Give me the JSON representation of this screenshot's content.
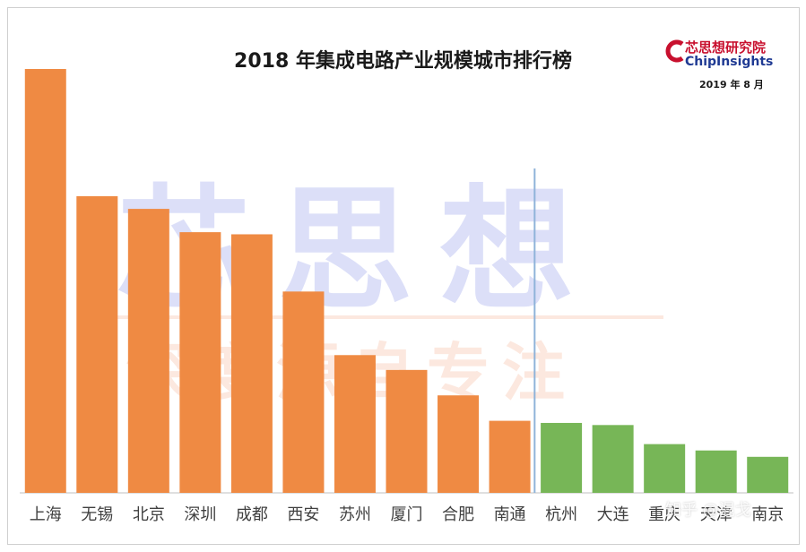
{
  "chart_data": {
    "type": "bar",
    "title": "2018 年集成电路产业规模城市排行榜",
    "categories": [
      "上海",
      "无锡",
      "北京",
      "深圳",
      "成都",
      "西安",
      "苏州",
      "厦门",
      "合肥",
      "南通",
      "杭州",
      "大连",
      "重庆",
      "天津",
      "南京"
    ],
    "values": [
      100,
      70,
      67,
      61.5,
      61,
      47.5,
      32.5,
      29,
      23,
      17,
      16.5,
      16,
      11.5,
      10,
      8.5
    ],
    "ylim": [
      0,
      100
    ],
    "xlabel": "",
    "ylabel": "",
    "grid": false,
    "legend": "none",
    "group_split_after_index": 9,
    "colors": {
      "group1": "#ef8a43",
      "group2": "#77b657",
      "divider": "#8fb3d9",
      "axis": "#bfbfbf"
    }
  },
  "brand": {
    "name_cn": "芯思想研究院",
    "name_en": "ChipInsights",
    "date": "2019 年 8 月"
  },
  "watermark": {
    "big": "芯思想",
    "small": "深度源自专注"
  },
  "source_mark": "知乎 @混戈"
}
